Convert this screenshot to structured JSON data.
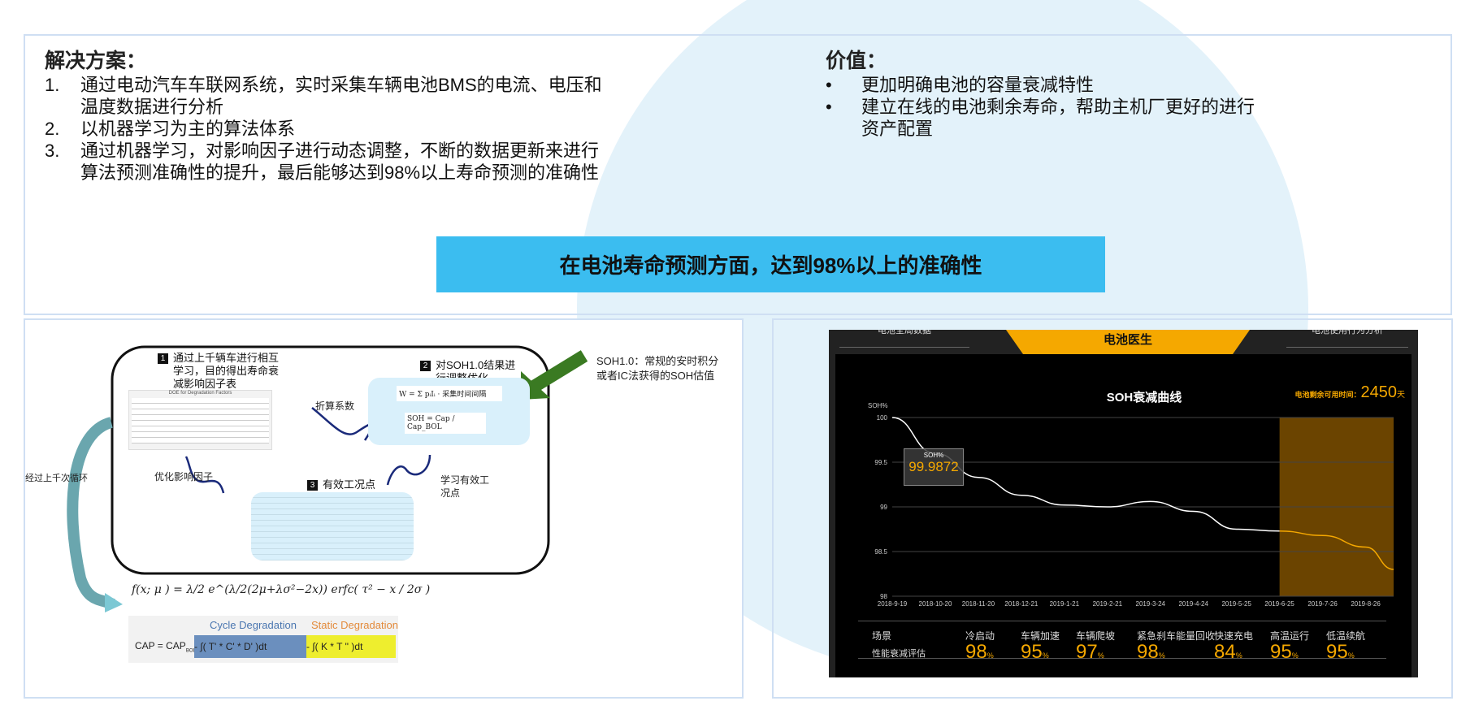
{
  "solution": {
    "title": "解决方案：",
    "items": [
      {
        "n": "1.",
        "lines": [
          "通过电动汽车车联网系统，实时采集车辆电池BMS的电流、电压和",
          "温度数据进行分析"
        ]
      },
      {
        "n": "2.",
        "lines": [
          "以机器学习为主的算法体系"
        ]
      },
      {
        "n": "3.",
        "lines": [
          "通过机器学习，对影响因子进行动态调整，不断的数据更新来进行",
          "算法预测准确性的提升，最后能够达到98%以上寿命预测的准确性"
        ]
      }
    ]
  },
  "value": {
    "title": "价值：",
    "items": [
      {
        "bullet": "•",
        "lines": [
          "更加明确电池的容量衰减特性"
        ]
      },
      {
        "bullet": "•",
        "lines": [
          "建立在线的电池剩余寿命，帮助主机厂更好的进行",
          "资产配置"
        ]
      }
    ]
  },
  "banner": "在电池寿命预测方面，达到98%以上的准确性",
  "diagram": {
    "step1": {
      "num": "1",
      "text": [
        "通过上千辆车进行相互",
        "学习，目的得出寿命衰",
        "减影响因子表"
      ]
    },
    "step2": {
      "num": "2",
      "text": [
        "对SOH1.0结果进",
        "行调整优化"
      ]
    },
    "step3": {
      "num": "3",
      "text": "有效工况点"
    },
    "table_title": "DOE for Degradation Factors",
    "conv": "折算系数",
    "opt": "优化影响因子",
    "learn": [
      "学习有效工",
      "况点"
    ],
    "loop": "经过上千次循环",
    "note": [
      "SOH1.0：常规的安时积分",
      "或者IC法获得的SOH估值"
    ],
    "formula_w": "W = Σ pᵢIᵢ · 采集时间间隔",
    "formula_soh": "SOH = Cap / Cap_BOL",
    "formula_f": "f(x; μ  ) = λ/2 e^(λ/2(2μ+λσ²−2x)) erfc(  τ² − x / 2σ )",
    "cycle_label": "Cycle Degradation",
    "static_label": "Static Degradation",
    "cap_prefix": "CAP = CAP",
    "cap_sub": "BOL",
    "cycle_expr": "- ∫(        T' * C' * D' )dt",
    "static_expr": "- ∫( K * T          '' )dt"
  },
  "dashboard": {
    "tab_left": "电池全局数据",
    "tab_center": "电池医生",
    "tab_right": "电池使用行为分析",
    "accent": "#f5a800",
    "remaining_label": "电池剩余可用时间：",
    "remaining_value": "2450",
    "remaining_unit": "天",
    "tooltip": {
      "label": "SOH%",
      "value": "99.9872"
    },
    "scene_header": "场景",
    "eval_header": "性能衰减评估",
    "scenes": [
      {
        "name": "冷启动",
        "value": "98",
        "unit": "%"
      },
      {
        "name": "车辆加速",
        "value": "95",
        "unit": "%"
      },
      {
        "name": "车辆爬坡",
        "value": "97",
        "unit": "%"
      },
      {
        "name": "紧急刹车能量回收",
        "value": "98",
        "unit": "%"
      },
      {
        "name": "快速充电",
        "value": "84",
        "unit": "%"
      },
      {
        "name": "高温运行",
        "value": "95",
        "unit": "%"
      },
      {
        "name": "低温续航",
        "value": "95",
        "unit": "%"
      }
    ]
  },
  "chart_data": {
    "type": "line",
    "title": "SOH衰减曲线",
    "ylabel": "SOH%",
    "ylim": [
      98,
      100
    ],
    "yticks": [
      "100",
      "99.5",
      "99",
      "98.5",
      "98"
    ],
    "categories": [
      "2018-9-19",
      "2018-10-20",
      "2018-11-20",
      "2018-12-21",
      "2019-1-21",
      "2019-2-21",
      "2019-3-24",
      "2019-4-24",
      "2019-5-25",
      "2019-6-25",
      "2019-7-26",
      "2019-8-26"
    ],
    "values": [
      100,
      99.6,
      99.33,
      99.13,
      99.02,
      99.0,
      99.06,
      98.95,
      98.75,
      98.73,
      98.68,
      98.55
    ],
    "end_value": 98.3,
    "forecast_from": "2019-6-25",
    "grid": true,
    "line_color": "#ffffff",
    "forecast_color": "#f5a800"
  }
}
